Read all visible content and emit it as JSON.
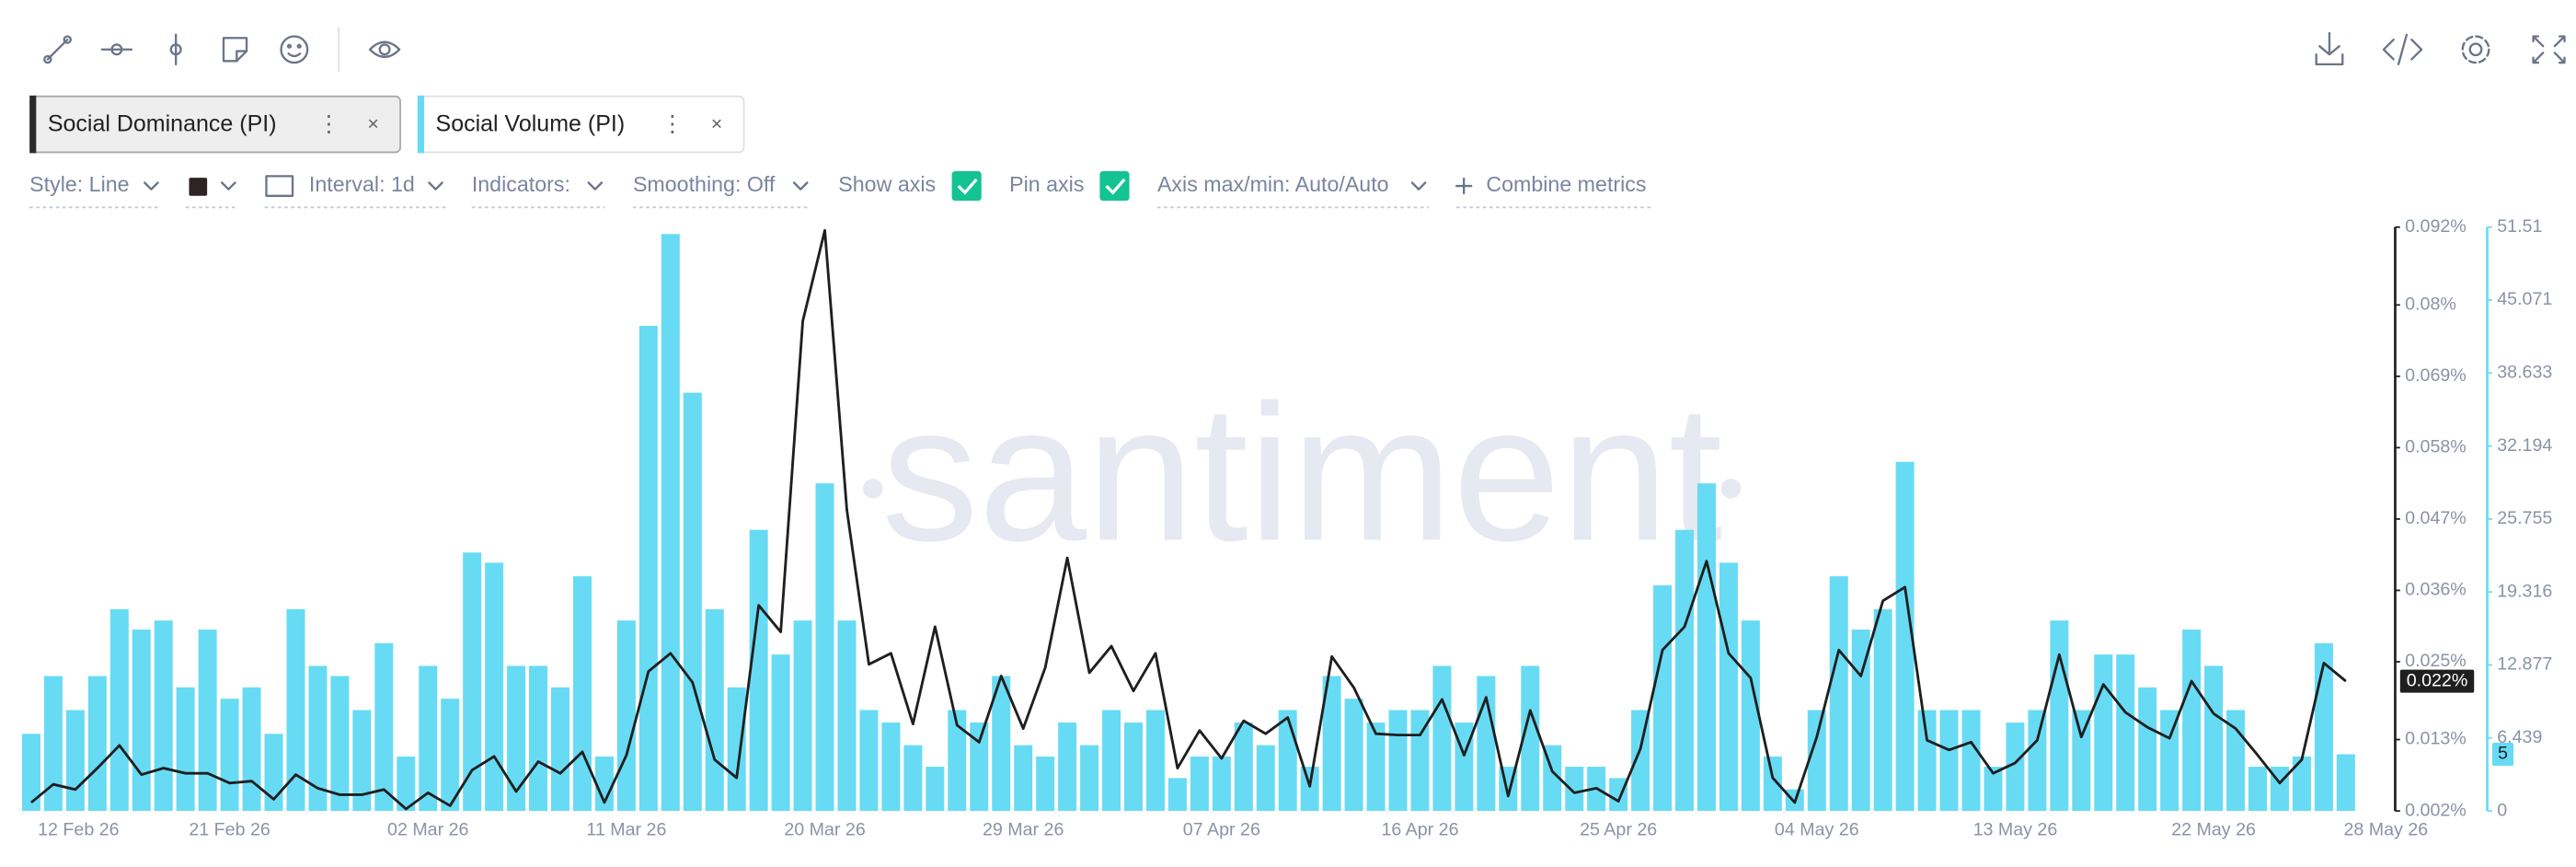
{
  "settings": {
    "style": "Style: Line",
    "interval": "Interval: 1d",
    "indicators": "Indicators:",
    "smoothing": "Smoothing: Off",
    "show_axis": "Show axis",
    "pin_axis": "Pin axis",
    "axis_minmax": "Axis max/min: Auto/Auto",
    "combine": "Combine metrics"
  },
  "chart_data": {
    "type": "bar",
    "watermark": "santiment",
    "categories": [
      "12 Feb 26",
      null,
      null,
      null,
      null,
      null,
      null,
      null,
      null,
      "21 Feb 26",
      null,
      null,
      null,
      null,
      null,
      null,
      null,
      null,
      "02 Mar 26",
      null,
      null,
      null,
      null,
      null,
      null,
      null,
      null,
      "11 Mar 26",
      null,
      null,
      null,
      null,
      null,
      null,
      null,
      null,
      "20 Mar 26",
      null,
      null,
      null,
      null,
      null,
      null,
      null,
      null,
      "29 Mar 26",
      null,
      null,
      null,
      null,
      null,
      null,
      null,
      null,
      "07 Apr 26",
      null,
      null,
      null,
      null,
      null,
      null,
      null,
      null,
      "16 Apr 26",
      null,
      null,
      null,
      null,
      null,
      null,
      null,
      null,
      "25 Apr 26",
      null,
      null,
      null,
      null,
      null,
      null,
      null,
      null,
      "04 May 26",
      null,
      null,
      null,
      null,
      null,
      null,
      null,
      null,
      "13 May 26",
      null,
      null,
      null,
      null,
      null,
      null,
      null,
      null,
      "22 May 26",
      null,
      null,
      null,
      null,
      null,
      "28 May 26"
    ],
    "series": [
      {
        "name": "Social Dominance (PI)",
        "type": "line",
        "color": "#1f1f1f",
        "last_label": "0.022%",
        "values": [
          0.0033,
          0.0061,
          0.0053,
          0.0086,
          0.0121,
          0.0076,
          0.0086,
          0.0078,
          0.0078,
          0.0063,
          0.0066,
          0.0038,
          0.0076,
          0.0055,
          0.0045,
          0.0045,
          0.0053,
          0.0023,
          0.0048,
          0.0028,
          0.0083,
          0.0104,
          0.005,
          0.0096,
          0.0078,
          0.0111,
          0.0033,
          0.0106,
          0.0235,
          0.0263,
          0.0218,
          0.0099,
          0.0071,
          0.0337,
          0.0296,
          0.0775,
          0.0915,
          0.0484,
          0.0246,
          0.0263,
          0.0154,
          0.0304,
          0.0152,
          0.0126,
          0.0228,
          0.0147,
          0.0241,
          0.041,
          0.0233,
          0.0274,
          0.0205,
          0.0263,
          0.0086,
          0.0144,
          0.0101,
          0.0159,
          0.0139,
          0.0164,
          0.0058,
          0.0258,
          0.021,
          0.0139,
          0.0137,
          0.0137,
          0.0192,
          0.0106,
          0.0195,
          0.0043,
          0.0175,
          0.0081,
          0.0048,
          0.0055,
          0.0035,
          0.0116,
          0.0268,
          0.0304,
          0.0405,
          0.0263,
          0.0225,
          0.0071,
          0.0033,
          0.0134,
          0.0268,
          0.0228,
          0.0344,
          0.0365,
          0.0129,
          0.0114,
          0.0126,
          0.0078,
          0.0094,
          0.0129,
          0.0261,
          0.0134,
          0.0215,
          0.0172,
          0.0149,
          0.0132,
          0.022,
          0.017,
          0.0147,
          0.0106,
          0.0063,
          0.0099,
          0.0248,
          0.022
        ]
      },
      {
        "name": "Social Volume (PI)",
        "type": "bar",
        "color": "#68dbf4",
        "axis": "y2",
        "values": [
          6.8,
          11.9,
          8.9,
          11.9,
          17.8,
          16.0,
          16.8,
          10.9,
          16.0,
          9.9,
          10.9,
          6.8,
          17.8,
          12.8,
          11.9,
          8.9,
          14.8,
          4.8,
          12.8,
          9.9,
          22.8,
          21.9,
          12.8,
          12.8,
          10.9,
          20.7,
          4.8,
          16.8,
          42.8,
          50.9,
          36.9,
          17.8,
          10.9,
          24.8,
          13.8,
          16.8,
          28.9,
          16.8,
          8.9,
          7.8,
          5.8,
          3.9,
          8.9,
          7.8,
          11.9,
          5.8,
          4.8,
          7.8,
          5.8,
          8.9,
          7.8,
          8.9,
          2.9,
          4.8,
          4.8,
          7.8,
          5.8,
          8.9,
          3.9,
          11.9,
          9.9,
          7.8,
          8.9,
          8.9,
          12.8,
          7.8,
          11.9,
          3.9,
          12.8,
          5.8,
          3.9,
          3.9,
          2.9,
          8.9,
          19.9,
          24.8,
          28.9,
          21.9,
          16.8,
          4.8,
          1.9,
          8.9,
          20.7,
          16.0,
          17.8,
          30.8,
          8.9,
          8.9,
          8.9,
          3.9,
          7.8,
          8.9,
          16.8,
          8.9,
          13.8,
          13.8,
          10.9,
          8.9,
          16.0,
          12.8,
          8.9,
          3.9,
          3.9,
          4.8,
          14.8,
          5
        ]
      }
    ],
    "ylim": [
      0.002,
      0.092
    ],
    "yticks": [
      {
        "value": 0.002,
        "label": "0.002%"
      },
      {
        "value": 0.013,
        "label": "0.013%"
      },
      {
        "value": 0.025,
        "label": "0.025%"
      },
      {
        "value": 0.036,
        "label": "0.036%"
      },
      {
        "value": 0.047,
        "label": "0.047%"
      },
      {
        "value": 0.058,
        "label": "0.058%"
      },
      {
        "value": 0.069,
        "label": "0.069%"
      },
      {
        "value": 0.08,
        "label": "0.08%"
      },
      {
        "value": 0.092,
        "label": "0.092%"
      }
    ],
    "y2lim": [
      0,
      51.51
    ],
    "y2ticks": [
      0,
      6.439,
      12.877,
      19.316,
      25.755,
      32.194,
      38.633,
      45.071,
      51.51
    ],
    "grid": false
  }
}
